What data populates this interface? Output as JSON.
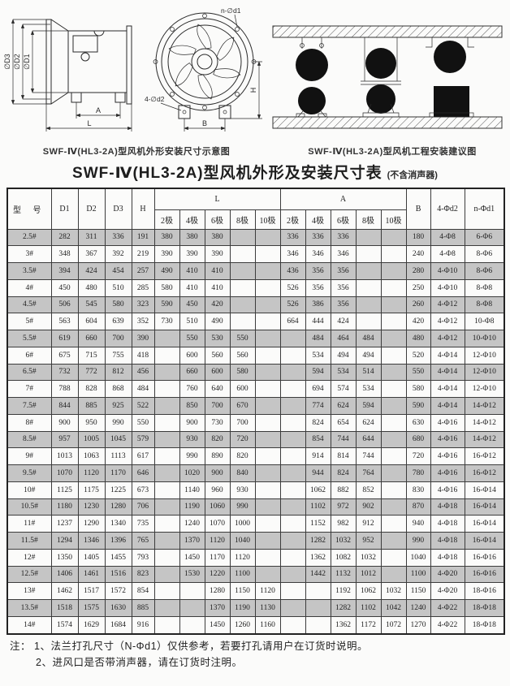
{
  "diagrams": {
    "side": {
      "caption": "SWF-Ⅳ(HL3-2A)型风机外形安装尺寸示意图",
      "label_d3": "∅D3",
      "label_d2": "∅D2",
      "label_d1": "∅D1",
      "label_a": "A",
      "label_l": "L"
    },
    "front": {
      "label_n_d1": "n-∅d1",
      "label_4_d2": "4-∅d2",
      "label_b": "B",
      "label_h": "H"
    },
    "install": {
      "caption": "SWF-Ⅳ(HL3-2A)型风机工程安装建议图"
    }
  },
  "title": {
    "main": "SWF-Ⅳ(HL3-2A)型风机外形及安装尺寸表",
    "suffix": "(不含消声器)"
  },
  "table": {
    "header": {
      "model": "型 号",
      "d1": "D1",
      "d2": "D2",
      "d3": "D3",
      "h": "H",
      "l_group": "L",
      "a_group": "A",
      "b": "B",
      "phi_d2": "4-Φd2",
      "phi_d1": "n-Φd1",
      "poles": [
        "2极",
        "4极",
        "6极",
        "8极",
        "10极"
      ]
    },
    "rows": [
      [
        "2.5#",
        "282",
        "311",
        "336",
        "191",
        "380",
        "380",
        "380",
        "",
        "",
        "336",
        "336",
        "336",
        "",
        "",
        "180",
        "4-Φ8",
        "6-Φ6"
      ],
      [
        "3#",
        "348",
        "367",
        "392",
        "219",
        "390",
        "390",
        "390",
        "",
        "",
        "346",
        "346",
        "346",
        "",
        "",
        "240",
        "4-Φ8",
        "8-Φ6"
      ],
      [
        "3.5#",
        "394",
        "424",
        "454",
        "257",
        "490",
        "410",
        "410",
        "",
        "",
        "436",
        "356",
        "356",
        "",
        "",
        "280",
        "4-Φ10",
        "8-Φ6"
      ],
      [
        "4#",
        "450",
        "480",
        "510",
        "285",
        "580",
        "410",
        "410",
        "",
        "",
        "526",
        "356",
        "356",
        "",
        "",
        "250",
        "4-Φ10",
        "8-Φ8"
      ],
      [
        "4.5#",
        "506",
        "545",
        "580",
        "323",
        "590",
        "450",
        "420",
        "",
        "",
        "526",
        "386",
        "356",
        "",
        "",
        "260",
        "4-Φ12",
        "8-Φ8"
      ],
      [
        "5#",
        "563",
        "604",
        "639",
        "352",
        "730",
        "510",
        "490",
        "",
        "",
        "664",
        "444",
        "424",
        "",
        "",
        "420",
        "4-Φ12",
        "10-Φ8"
      ],
      [
        "5.5#",
        "619",
        "660",
        "700",
        "390",
        "",
        "550",
        "530",
        "550",
        "",
        "",
        "484",
        "464",
        "484",
        "",
        "480",
        "4-Φ12",
        "10-Φ10"
      ],
      [
        "6#",
        "675",
        "715",
        "755",
        "418",
        "",
        "600",
        "560",
        "560",
        "",
        "",
        "534",
        "494",
        "494",
        "",
        "520",
        "4-Φ14",
        "12-Φ10"
      ],
      [
        "6.5#",
        "732",
        "772",
        "812",
        "456",
        "",
        "660",
        "600",
        "580",
        "",
        "",
        "594",
        "534",
        "514",
        "",
        "550",
        "4-Φ14",
        "12-Φ10"
      ],
      [
        "7#",
        "788",
        "828",
        "868",
        "484",
        "",
        "760",
        "640",
        "600",
        "",
        "",
        "694",
        "574",
        "534",
        "",
        "580",
        "4-Φ14",
        "12-Φ10"
      ],
      [
        "7.5#",
        "844",
        "885",
        "925",
        "522",
        "",
        "850",
        "700",
        "670",
        "",
        "",
        "774",
        "624",
        "594",
        "",
        "590",
        "4-Φ14",
        "14-Φ12"
      ],
      [
        "8#",
        "900",
        "950",
        "990",
        "550",
        "",
        "900",
        "730",
        "700",
        "",
        "",
        "824",
        "654",
        "624",
        "",
        "630",
        "4-Φ16",
        "14-Φ12"
      ],
      [
        "8.5#",
        "957",
        "1005",
        "1045",
        "579",
        "",
        "930",
        "820",
        "720",
        "",
        "",
        "854",
        "744",
        "644",
        "",
        "680",
        "4-Φ16",
        "14-Φ12"
      ],
      [
        "9#",
        "1013",
        "1063",
        "1113",
        "617",
        "",
        "990",
        "890",
        "820",
        "",
        "",
        "914",
        "814",
        "744",
        "",
        "720",
        "4-Φ16",
        "16-Φ12"
      ],
      [
        "9.5#",
        "1070",
        "1120",
        "1170",
        "646",
        "",
        "1020",
        "900",
        "840",
        "",
        "",
        "944",
        "824",
        "764",
        "",
        "780",
        "4-Φ16",
        "16-Φ12"
      ],
      [
        "10#",
        "1125",
        "1175",
        "1225",
        "673",
        "",
        "1140",
        "960",
        "930",
        "",
        "",
        "1062",
        "882",
        "852",
        "",
        "830",
        "4-Φ16",
        "16-Φ14"
      ],
      [
        "10.5#",
        "1180",
        "1230",
        "1280",
        "706",
        "",
        "1190",
        "1060",
        "990",
        "",
        "",
        "1102",
        "972",
        "902",
        "",
        "870",
        "4-Φ18",
        "16-Φ14"
      ],
      [
        "11#",
        "1237",
        "1290",
        "1340",
        "735",
        "",
        "1240",
        "1070",
        "1000",
        "",
        "",
        "1152",
        "982",
        "912",
        "",
        "940",
        "4-Φ18",
        "16-Φ14"
      ],
      [
        "11.5#",
        "1294",
        "1346",
        "1396",
        "765",
        "",
        "1370",
        "1120",
        "1040",
        "",
        "",
        "1282",
        "1032",
        "952",
        "",
        "990",
        "4-Φ18",
        "16-Φ14"
      ],
      [
        "12#",
        "1350",
        "1405",
        "1455",
        "793",
        "",
        "1450",
        "1170",
        "1120",
        "",
        "",
        "1362",
        "1082",
        "1032",
        "",
        "1040",
        "4-Φ18",
        "16-Φ16"
      ],
      [
        "12.5#",
        "1406",
        "1461",
        "1516",
        "823",
        "",
        "1530",
        "1220",
        "1100",
        "",
        "",
        "1442",
        "1132",
        "1012",
        "",
        "1100",
        "4-Φ20",
        "16-Φ16"
      ],
      [
        "13#",
        "1462",
        "1517",
        "1572",
        "854",
        "",
        "",
        "1280",
        "1150",
        "1120",
        "",
        "",
        "1192",
        "1062",
        "1032",
        "1150",
        "4-Φ20",
        "18-Φ16"
      ],
      [
        "13.5#",
        "1518",
        "1575",
        "1630",
        "885",
        "",
        "",
        "1370",
        "1190",
        "1130",
        "",
        "",
        "1282",
        "1102",
        "1042",
        "1240",
        "4-Φ22",
        "18-Φ18"
      ],
      [
        "14#",
        "1574",
        "1629",
        "1684",
        "916",
        "",
        "",
        "1450",
        "1260",
        "1160",
        "",
        "",
        "1362",
        "1172",
        "1072",
        "1270",
        "4-Φ22",
        "18-Φ18"
      ]
    ]
  },
  "notes": {
    "prefix": "注：",
    "line1": "1、法兰打孔尺寸（N-Φd1）仅供参考，若要打孔请用户在订货时说明。",
    "line2": "2、进风口是否带消声器，请在订货时注明。"
  },
  "colors": {
    "row_shade": "#c5c5c5",
    "ink": "#2a2a2a"
  }
}
